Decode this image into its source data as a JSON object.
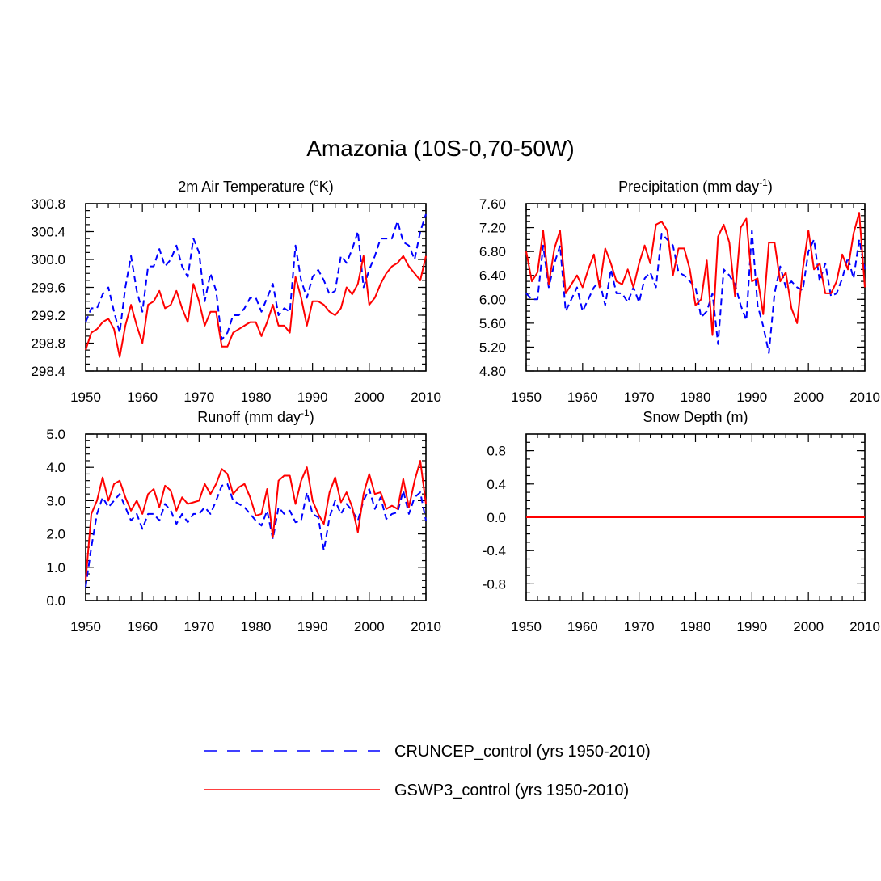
{
  "title": "Amazonia (10S-0,70-50W)",
  "legend": [
    {
      "label": "CRUNCEP_control (yrs 1950-2010)",
      "color": "#0000ff",
      "dash": "dashed"
    },
    {
      "label": "GSWP3_control (yrs 1950-2010)",
      "color": "#ff0000",
      "dash": "solid"
    }
  ],
  "colors": {
    "cruncep": "#0000ff",
    "gswp3": "#ff0000"
  },
  "chart_data": [
    {
      "type": "line",
      "title_main": "2m Air Temperature (",
      "title_sup": "o",
      "title_tail": "K)",
      "xlim": [
        1950,
        2010
      ],
      "ylim": [
        298.4,
        300.8
      ],
      "xticks": [
        1950,
        1960,
        1970,
        1980,
        1990,
        2000,
        2010
      ],
      "xtick_labels": [
        "1950",
        "1960",
        "1970",
        "1980",
        "1990",
        "2000",
        "2010"
      ],
      "yticks": [
        298.4,
        298.8,
        299.2,
        299.6,
        300.0,
        300.4,
        300.8
      ],
      "ytick_labels": [
        "298.4",
        "298.8",
        "299.2",
        "299.6",
        "300.0",
        "300.4",
        "300.8"
      ],
      "yminor": 0.1,
      "x": [
        1950,
        1951,
        1952,
        1953,
        1954,
        1955,
        1956,
        1957,
        1958,
        1959,
        1960,
        1961,
        1962,
        1963,
        1964,
        1965,
        1966,
        1967,
        1968,
        1969,
        1970,
        1971,
        1972,
        1973,
        1974,
        1975,
        1976,
        1977,
        1978,
        1979,
        1980,
        1981,
        1982,
        1983,
        1984,
        1985,
        1986,
        1987,
        1988,
        1989,
        1990,
        1991,
        1992,
        1993,
        1994,
        1995,
        1996,
        1997,
        1998,
        1999,
        2000,
        2001,
        2002,
        2003,
        2004,
        2005,
        2006,
        2007,
        2008,
        2009,
        2010
      ],
      "series": [
        {
          "name": "CRUNCEP_control",
          "values": [
            299.1,
            299.3,
            299.3,
            299.5,
            299.6,
            299.25,
            298.95,
            299.6,
            300.05,
            299.55,
            299.25,
            299.9,
            299.9,
            300.15,
            299.9,
            300.0,
            300.2,
            299.9,
            299.75,
            300.3,
            300.1,
            299.4,
            299.8,
            299.55,
            298.85,
            298.95,
            299.2,
            299.2,
            299.3,
            299.45,
            299.45,
            299.25,
            299.45,
            299.65,
            299.2,
            299.3,
            299.25,
            300.2,
            299.7,
            299.45,
            299.75,
            299.85,
            299.7,
            299.5,
            299.55,
            300.05,
            299.95,
            300.15,
            300.4,
            299.6,
            299.85,
            300.05,
            300.3,
            300.3,
            300.3,
            300.55,
            300.25,
            300.2,
            300.0,
            300.4,
            300.65
          ]
        },
        {
          "name": "GSWP3_control",
          "values": [
            298.7,
            298.95,
            299.0,
            299.1,
            299.15,
            299.0,
            298.6,
            299.05,
            299.35,
            299.05,
            298.8,
            299.35,
            299.4,
            299.55,
            299.3,
            299.35,
            299.55,
            299.3,
            299.1,
            299.65,
            299.4,
            299.05,
            299.25,
            299.25,
            298.75,
            298.75,
            298.95,
            299.0,
            299.05,
            299.1,
            299.1,
            298.9,
            299.1,
            299.35,
            299.05,
            299.05,
            298.95,
            299.75,
            299.45,
            299.05,
            299.4,
            299.4,
            299.35,
            299.25,
            299.2,
            299.3,
            299.6,
            299.5,
            299.65,
            300.05,
            299.35,
            299.45,
            299.65,
            299.8,
            299.9,
            299.95,
            300.05,
            299.9,
            299.8,
            299.7,
            300.05
          ]
        }
      ]
    },
    {
      "type": "line",
      "title_main": "Precipitation (mm day",
      "title_sup": "-1",
      "title_tail": ")",
      "xlim": [
        1950,
        2010
      ],
      "ylim": [
        4.8,
        7.6
      ],
      "xticks": [
        1950,
        1960,
        1970,
        1980,
        1990,
        2000,
        2010
      ],
      "xtick_labels": [
        "1950",
        "1960",
        "1970",
        "1980",
        "1990",
        "2000",
        "2010"
      ],
      "yticks": [
        4.8,
        5.2,
        5.6,
        6.0,
        6.4,
        6.8,
        7.2,
        7.6
      ],
      "ytick_labels": [
        "4.80",
        "5.20",
        "5.60",
        "6.00",
        "6.40",
        "6.80",
        "7.20",
        "7.60"
      ],
      "yminor": 0.1,
      "x": [
        1950,
        1951,
        1952,
        1953,
        1954,
        1955,
        1956,
        1957,
        1958,
        1959,
        1960,
        1961,
        1962,
        1963,
        1964,
        1965,
        1966,
        1967,
        1968,
        1969,
        1970,
        1971,
        1972,
        1973,
        1974,
        1975,
        1976,
        1977,
        1978,
        1979,
        1980,
        1981,
        1982,
        1983,
        1984,
        1985,
        1986,
        1987,
        1988,
        1989,
        1990,
        1991,
        1992,
        1993,
        1994,
        1995,
        1996,
        1997,
        1998,
        1999,
        2000,
        2001,
        2002,
        2003,
        2004,
        2005,
        2006,
        2007,
        2008,
        2009,
        2010
      ],
      "series": [
        {
          "name": "CRUNCEP_control",
          "values": [
            6.1,
            6.0,
            6.0,
            6.9,
            6.2,
            6.6,
            6.9,
            5.8,
            6.0,
            6.2,
            5.8,
            6.0,
            6.2,
            6.3,
            5.9,
            6.5,
            6.1,
            6.1,
            5.95,
            6.2,
            5.95,
            6.35,
            6.45,
            6.2,
            7.1,
            7.0,
            6.9,
            6.45,
            6.4,
            6.3,
            6.2,
            5.7,
            5.8,
            6.1,
            5.25,
            6.5,
            6.4,
            6.25,
            5.9,
            5.65,
            7.15,
            5.9,
            5.55,
            5.1,
            6.1,
            6.55,
            6.2,
            6.3,
            6.2,
            6.15,
            6.8,
            7.0,
            6.3,
            6.6,
            6.05,
            6.1,
            6.35,
            6.7,
            6.35,
            7.0,
            6.5
          ]
        },
        {
          "name": "GSWP3_control",
          "values": [
            6.8,
            6.3,
            6.45,
            7.15,
            6.25,
            6.85,
            7.15,
            6.1,
            6.25,
            6.4,
            6.2,
            6.5,
            6.75,
            6.2,
            6.85,
            6.6,
            6.3,
            6.25,
            6.5,
            6.2,
            6.6,
            6.9,
            6.6,
            7.25,
            7.3,
            7.15,
            6.4,
            6.85,
            6.85,
            6.5,
            5.9,
            6.0,
            6.65,
            5.4,
            7.05,
            7.25,
            6.95,
            6.05,
            7.2,
            7.35,
            6.3,
            6.35,
            5.75,
            6.95,
            6.95,
            6.3,
            6.45,
            5.85,
            5.6,
            6.5,
            7.15,
            6.5,
            6.6,
            6.1,
            6.1,
            6.3,
            6.75,
            6.5,
            7.1,
            7.45,
            6.2
          ]
        }
      ]
    },
    {
      "type": "line",
      "title_main": "Runoff (mm day",
      "title_sup": "-1",
      "title_tail": ")",
      "xlim": [
        1950,
        2010
      ],
      "ylim": [
        0.0,
        5.0
      ],
      "xticks": [
        1950,
        1960,
        1970,
        1980,
        1990,
        2000,
        2010
      ],
      "xtick_labels": [
        "1950",
        "1960",
        "1970",
        "1980",
        "1990",
        "2000",
        "2010"
      ],
      "yticks": [
        0.0,
        1.0,
        2.0,
        3.0,
        4.0,
        5.0
      ],
      "ytick_labels": [
        "0.0",
        "1.0",
        "2.0",
        "3.0",
        "4.0",
        "5.0"
      ],
      "yminor": 0.2,
      "x": [
        1950,
        1951,
        1952,
        1953,
        1954,
        1955,
        1956,
        1957,
        1958,
        1959,
        1960,
        1961,
        1962,
        1963,
        1964,
        1965,
        1966,
        1967,
        1968,
        1969,
        1970,
        1971,
        1972,
        1973,
        1974,
        1975,
        1976,
        1977,
        1978,
        1979,
        1980,
        1981,
        1982,
        1983,
        1984,
        1985,
        1986,
        1987,
        1988,
        1989,
        1990,
        1991,
        1992,
        1993,
        1994,
        1995,
        1996,
        1997,
        1998,
        1999,
        2000,
        2001,
        2002,
        2003,
        2004,
        2005,
        2006,
        2007,
        2008,
        2009,
        2010
      ],
      "series": [
        {
          "name": "CRUNCEP_control",
          "values": [
            0.4,
            1.6,
            2.6,
            3.1,
            2.8,
            3.0,
            3.2,
            2.8,
            2.4,
            2.6,
            2.15,
            2.6,
            2.6,
            2.4,
            2.9,
            2.7,
            2.3,
            2.6,
            2.35,
            2.6,
            2.6,
            2.8,
            2.6,
            3.0,
            3.45,
            3.5,
            3.0,
            2.9,
            2.8,
            2.6,
            2.4,
            2.25,
            2.7,
            1.85,
            2.8,
            2.6,
            2.7,
            2.35,
            2.4,
            3.25,
            2.6,
            2.5,
            1.5,
            2.5,
            3.0,
            2.6,
            2.9,
            2.7,
            2.4,
            3.0,
            3.35,
            2.75,
            3.1,
            2.45,
            2.6,
            2.65,
            3.3,
            2.6,
            3.1,
            3.25,
            2.4
          ]
        },
        {
          "name": "GSWP3_control",
          "values": [
            0.6,
            2.6,
            3.0,
            3.7,
            3.0,
            3.5,
            3.6,
            3.1,
            2.7,
            3.0,
            2.6,
            3.2,
            3.35,
            2.8,
            3.45,
            3.3,
            2.7,
            3.1,
            2.9,
            2.95,
            3.0,
            3.5,
            3.2,
            3.5,
            3.95,
            3.8,
            3.2,
            3.4,
            3.5,
            3.1,
            2.55,
            2.6,
            3.35,
            1.9,
            3.6,
            3.75,
            3.75,
            2.9,
            3.6,
            4.0,
            3.0,
            2.6,
            2.3,
            3.25,
            3.7,
            2.95,
            3.25,
            2.8,
            2.05,
            3.2,
            3.8,
            3.2,
            3.25,
            2.75,
            2.85,
            2.75,
            3.65,
            2.8,
            3.6,
            4.2,
            2.9
          ]
        }
      ]
    },
    {
      "type": "line",
      "title_main": "Snow Depth (m)",
      "title_sup": "",
      "title_tail": "",
      "xlim": [
        1950,
        2010
      ],
      "ylim": [
        -1.0,
        1.0
      ],
      "xticks": [
        1950,
        1960,
        1970,
        1980,
        1990,
        2000,
        2010
      ],
      "xtick_labels": [
        "1950",
        "1960",
        "1970",
        "1980",
        "1990",
        "2000",
        "2010"
      ],
      "yticks": [
        -0.8,
        -0.4,
        0.0,
        0.4,
        0.8
      ],
      "ytick_labels": [
        "-0.8",
        "-0.4",
        "0.0",
        "0.4",
        "0.8"
      ],
      "yminor": 0.1,
      "x": [
        1950,
        2010
      ],
      "series": [
        {
          "name": "CRUNCEP_control",
          "values": [
            0.0,
            0.0
          ]
        },
        {
          "name": "GSWP3_control",
          "values": [
            0.0,
            0.0
          ]
        }
      ]
    }
  ]
}
